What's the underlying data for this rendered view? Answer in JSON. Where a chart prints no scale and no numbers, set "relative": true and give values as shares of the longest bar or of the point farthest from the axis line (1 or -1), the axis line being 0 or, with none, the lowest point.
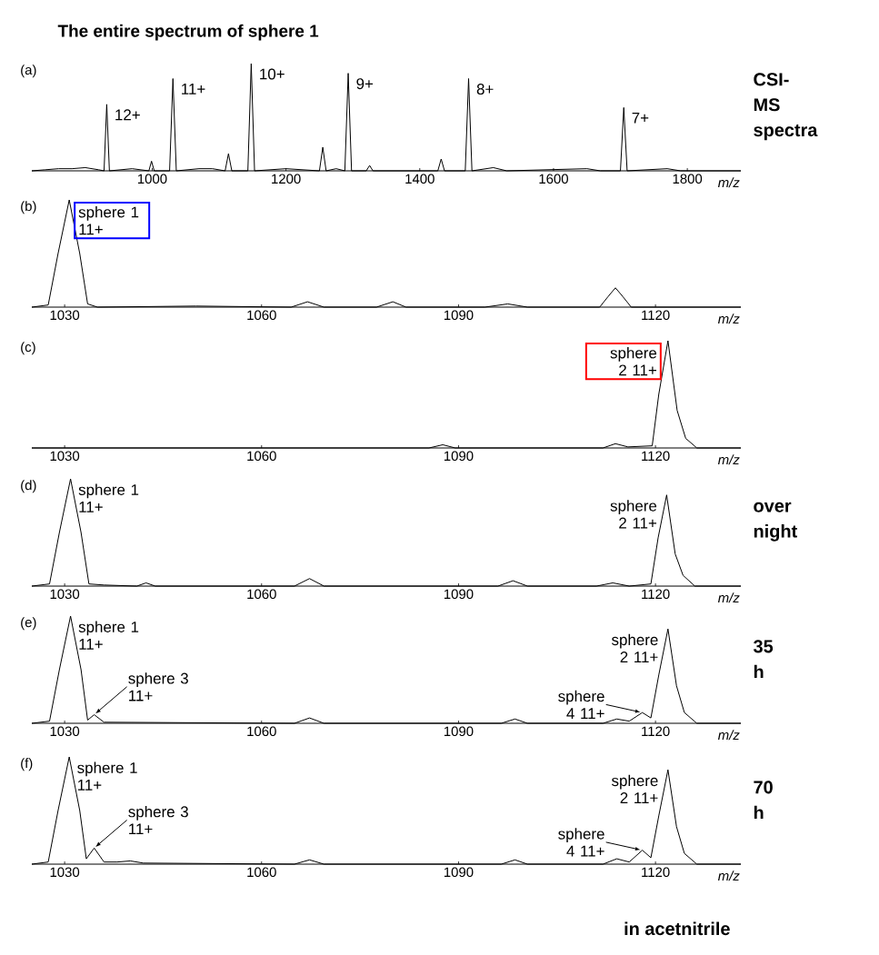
{
  "chart_data": [
    {
      "type": "line",
      "relative": true,
      "title": "The entire spectrum of sphere 1",
      "xlabel": "m/z",
      "xlim": [
        820,
        1880
      ],
      "xticks": [
        1000,
        1200,
        1400,
        1600,
        1800
      ],
      "color": "#000000",
      "x": [
        820,
        840,
        860,
        880,
        900,
        920,
        928,
        932,
        936,
        970,
        995,
        999,
        1003,
        1026,
        1031,
        1036,
        1070,
        1090,
        1109,
        1114,
        1119,
        1143,
        1148,
        1153,
        1200,
        1250,
        1255,
        1260,
        1275,
        1288,
        1293,
        1298,
        1320,
        1325,
        1330,
        1427,
        1432,
        1437,
        1468,
        1473,
        1478,
        1510,
        1530,
        1650,
        1670,
        1700,
        1705,
        1710,
        1770,
        1790,
        1880
      ],
      "values": [
        0,
        0.01,
        0.02,
        0.02,
        0.03,
        0.01,
        0,
        0.62,
        0,
        0.02,
        0,
        0.09,
        0,
        0,
        0.86,
        0,
        0.02,
        0.02,
        0,
        0.16,
        0,
        0,
        1,
        0,
        0.02,
        0,
        0.22,
        0,
        0.02,
        0,
        0.91,
        0,
        0,
        0.05,
        0,
        0,
        0.11,
        0,
        0,
        0.86,
        0,
        0.03,
        0,
        0.02,
        0,
        0,
        0.59,
        0,
        0.02,
        0,
        0
      ],
      "annotations": [
        "(a)",
        "CSI-MS spectra",
        {
          "text": "12+",
          "x": 932,
          "y": 0.62
        },
        {
          "text": "11+",
          "x": 1031,
          "y": 0.86
        },
        {
          "text": "10+",
          "x": 1148,
          "y": 1
        },
        {
          "text": "9+",
          "x": 1293,
          "y": 0.91
        },
        {
          "text": "8+",
          "x": 1473,
          "y": 0.86
        },
        {
          "text": "7+",
          "x": 1705,
          "y": 0.59
        }
      ]
    },
    {
      "type": "line",
      "relative": true,
      "xlabel": "m/z",
      "xlim": [
        1025,
        1133
      ],
      "xticks": [
        1030,
        1060,
        1090,
        1120
      ],
      "color": "#000000",
      "x": [
        1025,
        1027.5,
        1029,
        1030.7,
        1032.3,
        1033.5,
        1035,
        1050,
        1064.5,
        1067,
        1069.5,
        1077.5,
        1080,
        1082,
        1094,
        1097.5,
        1100.5,
        1111.5,
        1112.8,
        1113.9,
        1115,
        1116.3,
        1133
      ],
      "values": [
        0,
        0.02,
        0.5,
        1,
        0.5,
        0.03,
        0,
        0.01,
        0,
        0.05,
        0,
        0,
        0.05,
        0,
        0,
        0.03,
        0,
        0,
        0.1,
        0.18,
        0.1,
        0,
        0
      ],
      "annotations": [
        "(b)",
        {
          "text": "sphere 1 11+",
          "x": 1030.7,
          "y": 1
        }
      ]
    },
    {
      "type": "line",
      "relative": true,
      "xlabel": "m/z",
      "xlim": [
        1025,
        1133
      ],
      "xticks": [
        1030,
        1060,
        1090,
        1120
      ],
      "color": "#000000",
      "x": [
        1025,
        1085.5,
        1087.6,
        1089.5,
        1112,
        1113.9,
        1115.8,
        1119.5,
        1120.5,
        1121.9,
        1123.3,
        1124.6,
        1126.3,
        1133
      ],
      "values": [
        0,
        0,
        0.03,
        0,
        0,
        0.04,
        0.01,
        0.02,
        0.5,
        1,
        0.35,
        0.09,
        0,
        0
      ],
      "annotations": [
        "(c)",
        {
          "text": "sphere 2 11+",
          "x": 1121.9,
          "y": 1
        }
      ]
    },
    {
      "type": "line",
      "relative": true,
      "xlabel": "m/z",
      "xlim": [
        1025,
        1133
      ],
      "xticks": [
        1030,
        1060,
        1090,
        1120
      ],
      "color": "#000000",
      "x": [
        1025,
        1027.7,
        1029.2,
        1030.9,
        1032.5,
        1033.7,
        1036,
        1041,
        1042.4,
        1043.8,
        1065,
        1067.3,
        1069.5,
        1096,
        1098.3,
        1100.5,
        1111,
        1113.5,
        1116,
        1119.3,
        1120.4,
        1121.7,
        1123,
        1124.2,
        1126,
        1133
      ],
      "values": [
        0,
        0.02,
        0.5,
        1,
        0.5,
        0.02,
        0.01,
        0,
        0.03,
        0,
        0,
        0.07,
        0,
        0,
        0.05,
        0,
        0,
        0.03,
        0,
        0.02,
        0.45,
        0.85,
        0.3,
        0.1,
        0,
        0
      ],
      "annotations": [
        "(d)",
        "over night",
        {
          "text": "sphere 1 11+",
          "x": 1030.9,
          "y": 1
        },
        {
          "text": "sphere 2 11+",
          "x": 1121.7,
          "y": 0.85
        }
      ]
    },
    {
      "type": "line",
      "relative": true,
      "xlabel": "m/z",
      "xlim": [
        1025,
        1133
      ],
      "xticks": [
        1030,
        1060,
        1090,
        1120
      ],
      "color": "#000000",
      "x": [
        1025,
        1027.7,
        1029.2,
        1030.9,
        1032.5,
        1033.5,
        1034.5,
        1036,
        1065,
        1067.3,
        1069.5,
        1096.5,
        1098.6,
        1100.5,
        1112,
        1114.1,
        1116,
        1118,
        1119.3,
        1120.5,
        1121.9,
        1123.2,
        1124.4,
        1126.3,
        1133
      ],
      "values": [
        0,
        0.02,
        0.5,
        1,
        0.5,
        0.03,
        0.08,
        0.01,
        0,
        0.05,
        0,
        0,
        0.04,
        0,
        0,
        0.04,
        0.02,
        0.1,
        0.05,
        0.45,
        0.88,
        0.35,
        0.1,
        0,
        0
      ],
      "annotations": [
        "(e)",
        "35 h",
        {
          "text": "sphere 1 11+",
          "x": 1030.9,
          "y": 1
        },
        {
          "text": "sphere 3 11+",
          "x": 1034.5,
          "y": 0.08
        },
        {
          "text": "sphere 2 11+",
          "x": 1121.9,
          "y": 0.88
        },
        {
          "text": "sphere 4 11+",
          "x": 1118,
          "y": 0.1
        }
      ]
    },
    {
      "type": "line",
      "relative": true,
      "xlabel": "m/z",
      "xlim": [
        1025,
        1133
      ],
      "xticks": [
        1030,
        1060,
        1090,
        1120
      ],
      "color": "#000000",
      "x": [
        1025,
        1027.5,
        1029,
        1030.7,
        1032.3,
        1033.3,
        1034.5,
        1036,
        1038,
        1040,
        1042,
        1065,
        1067.3,
        1069.5,
        1096.5,
        1098.6,
        1100.5,
        1112,
        1114.1,
        1116,
        1118,
        1119.3,
        1120.5,
        1121.9,
        1123.2,
        1124.4,
        1126.3,
        1133
      ],
      "values": [
        0,
        0.02,
        0.5,
        1,
        0.5,
        0.05,
        0.15,
        0.02,
        0.02,
        0.03,
        0.01,
        0,
        0.04,
        0,
        0,
        0.04,
        0,
        0,
        0.05,
        0.02,
        0.13,
        0.06,
        0.45,
        0.88,
        0.35,
        0.1,
        0,
        0
      ],
      "annotations": [
        "(f)",
        "70 h",
        "in acetnitrile",
        {
          "text": "sphere 1 11+",
          "x": 1030.7,
          "y": 1
        },
        {
          "text": "sphere 3 11+",
          "x": 1034.5,
          "y": 0.15
        },
        {
          "text": "sphere 2 11+",
          "x": 1121.9,
          "y": 0.88
        },
        {
          "text": "sphere 4 11+",
          "x": 1118,
          "y": 0.13
        }
      ]
    }
  ]
}
